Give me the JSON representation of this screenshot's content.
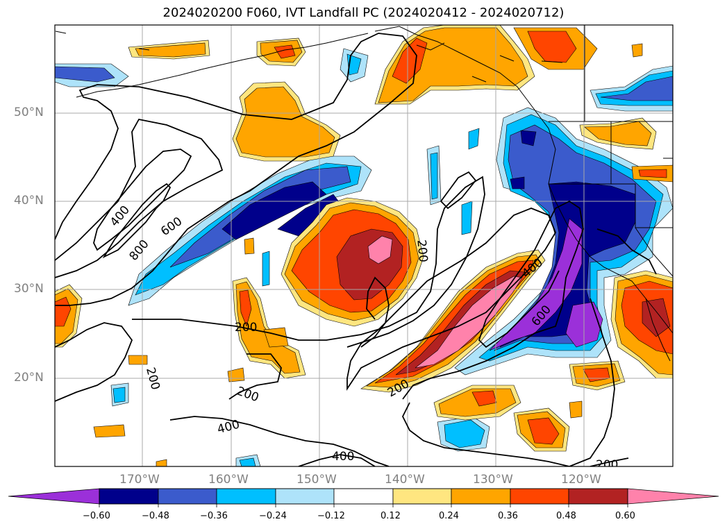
{
  "title": "2024020200 F060, IVT Landfall PC (2024020412 - 2024020712)",
  "lat_labels": [
    "50°N",
    "40°N",
    "30°N",
    "20°N"
  ],
  "lon_labels": [
    "170°W",
    "160°W",
    "150°W",
    "140°W",
    "130°W",
    "120°W"
  ],
  "contour_labels": [
    "400",
    "800",
    "600",
    "200",
    "200",
    "200",
    "200",
    "200",
    "400",
    "400",
    "600",
    "400",
    "200"
  ],
  "colorbar": {
    "ticks": [
      "−0.60",
      "−0.48",
      "−0.36",
      "−0.24",
      "−0.12",
      "0.12",
      "0.24",
      "0.36",
      "0.48",
      "0.60"
    ],
    "colors": [
      "#9b30d9",
      "#00008b",
      "#3b5bcc",
      "#00bfff",
      "#aee3fa",
      "#ffffff",
      "#ffe680",
      "#ffa500",
      "#ff4500",
      "#b22222",
      "#ff82ab",
      "#ff82ab"
    ]
  }
}
